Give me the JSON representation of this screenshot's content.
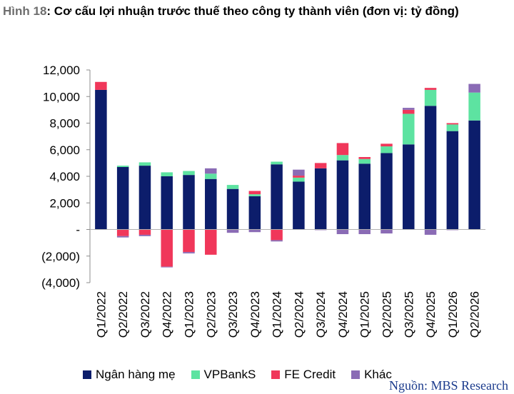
{
  "title": {
    "label": "Hình 18",
    "text": ": Cơ cấu lợi nhuận trước thuế theo công ty thành viên (đơn vị: tỷ đồng)"
  },
  "source": "Nguồn: MBS Research",
  "colors": {
    "Ngân hàng mẹ": "#0c1d6b",
    "VPBankS": "#5de3a1",
    "FE Credit": "#f0375a",
    "Khác": "#8a6bb5"
  },
  "chart_data": {
    "type": "bar",
    "stacked": true,
    "categories": [
      "Q1/2022",
      "Q2/2022",
      "Q3/2022",
      "Q4/2022",
      "Q1/2023",
      "Q2/2023",
      "Q3/2023",
      "Q4/2023",
      "Q1/2024",
      "Q2/2024",
      "Q3/2024",
      "Q4/2024",
      "Q1/2025",
      "Q2/2025",
      "Q3/2025",
      "Q4/2025",
      "Q1/2026",
      "Q2/2026"
    ],
    "series": [
      {
        "name": "Ngân hàng mẹ",
        "values": [
          10500,
          4700,
          4800,
          4000,
          4100,
          3800,
          3050,
          2500,
          4900,
          3600,
          4600,
          5200,
          4950,
          5750,
          6400,
          9300,
          7400,
          8200
        ]
      },
      {
        "name": "VPBankS",
        "values": [
          0,
          100,
          250,
          300,
          300,
          400,
          300,
          150,
          200,
          300,
          0,
          400,
          350,
          500,
          2300,
          1200,
          500,
          2100
        ]
      },
      {
        "name": "FE Credit",
        "values": [
          600,
          -500,
          -400,
          -2800,
          -1700,
          -1900,
          0,
          250,
          -800,
          150,
          400,
          900,
          150,
          200,
          300,
          150,
          100,
          0
        ]
      },
      {
        "name": "Khác",
        "values": [
          0,
          -100,
          -100,
          -50,
          -100,
          400,
          -250,
          -200,
          -100,
          450,
          -50,
          -350,
          -350,
          -300,
          150,
          -400,
          -50,
          650
        ]
      }
    ],
    "ylim": [
      -4000,
      12000
    ],
    "yticks": [
      "12,000",
      "10,000",
      "8,000",
      "6,000",
      "4,000",
      "2,000",
      "-",
      "(2,000)",
      "(4,000)"
    ],
    "ytick_values": [
      12000,
      10000,
      8000,
      6000,
      4000,
      2000,
      0,
      -2000,
      -4000
    ],
    "grid": false,
    "legend_position": "bottom"
  }
}
